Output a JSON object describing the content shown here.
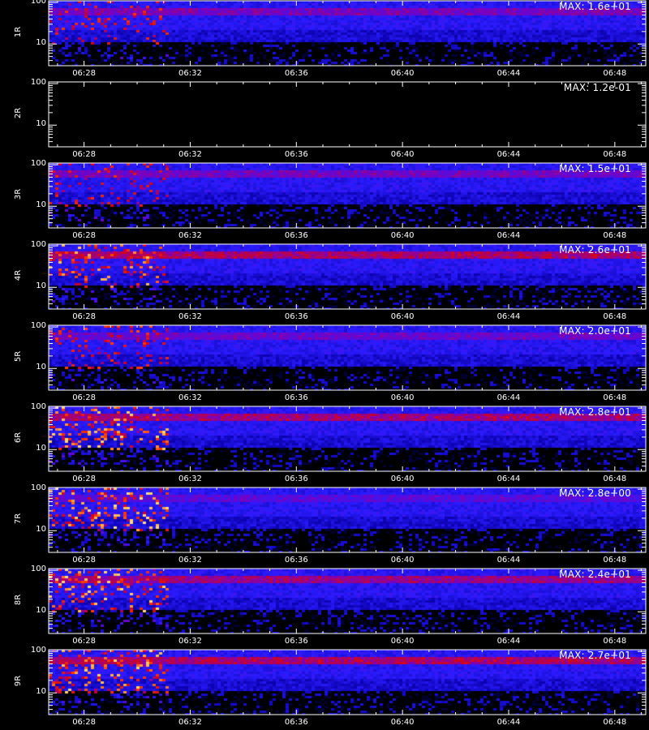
{
  "chart_data": {
    "type": "heatmap",
    "x_axis": {
      "start": "06:26:40",
      "end": "06:49:10",
      "ticks": [
        "06:28",
        "06:32",
        "06:36",
        "06:40",
        "06:44",
        "06:48"
      ]
    },
    "y_axis": {
      "scale": "log",
      "range": [
        3,
        110
      ],
      "ticks": [
        "100",
        "10"
      ]
    },
    "xlabel": "",
    "colormap": [
      "#000000",
      "#0a00a8",
      "#2a1cff",
      "#7a00c0",
      "#d00020",
      "#ff3a00",
      "#ffd060",
      "#ffffff"
    ],
    "panels": [
      {
        "label": "1R",
        "max_text": "MAX: 1.6e+01",
        "band_intensity": 0.55,
        "early_burst": 0.5
      },
      {
        "label": "2R",
        "max_text": "MAX: 1.2e-01",
        "band_intensity": 0.0,
        "early_burst": 0.0
      },
      {
        "label": "3R",
        "max_text": "MAX: 1.5e+01",
        "band_intensity": 0.5,
        "early_burst": 0.5
      },
      {
        "label": "4R",
        "max_text": "MAX: 2.6e+01",
        "band_intensity": 0.85,
        "early_burst": 0.8
      },
      {
        "label": "5R",
        "max_text": "MAX: 2.0e+01",
        "band_intensity": 0.45,
        "early_burst": 0.6
      },
      {
        "label": "6R",
        "max_text": "MAX: 2.8e+01",
        "band_intensity": 0.8,
        "early_burst": 0.85
      },
      {
        "label": "7R",
        "max_text": "MAX: 2.8e+00",
        "band_intensity": 0.35,
        "early_burst": 0.9
      },
      {
        "label": "8R",
        "max_text": "MAX: 2.4e+01",
        "band_intensity": 0.75,
        "early_burst": 0.9
      },
      {
        "label": "9R",
        "max_text": "MAX: 2.7e+01",
        "band_intensity": 0.85,
        "early_burst": 0.85
      }
    ]
  }
}
